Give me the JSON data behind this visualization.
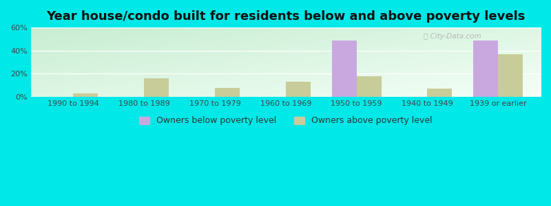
{
  "title": "Year house/condo built for residents below and above poverty levels",
  "categories": [
    "1990 to 1994",
    "1980 to 1989",
    "1970 to 1979",
    "1960 to 1969",
    "1950 to 1959",
    "1940 to 1949",
    "1939 or earlier"
  ],
  "below_poverty": [
    0,
    0,
    0,
    0,
    49,
    0,
    49
  ],
  "above_poverty": [
    3,
    16,
    8,
    13,
    18,
    7,
    37
  ],
  "below_color": "#c9a8e0",
  "above_color": "#c8cc99",
  "background_color": "#00e8e8",
  "ylim": [
    0,
    60
  ],
  "yticks": [
    0,
    20,
    40,
    60
  ],
  "ytick_labels": [
    "0%",
    "20%",
    "40%",
    "60%"
  ],
  "legend_below": "Owners below poverty level",
  "legend_above": "Owners above poverty level",
  "bar_width": 0.35,
  "title_fontsize": 13,
  "tick_fontsize": 8,
  "legend_fontsize": 9,
  "gradient_color_topleft": [
    0.78,
    0.93,
    0.82
  ],
  "gradient_color_bottomright": [
    0.96,
    1.0,
    0.97
  ]
}
